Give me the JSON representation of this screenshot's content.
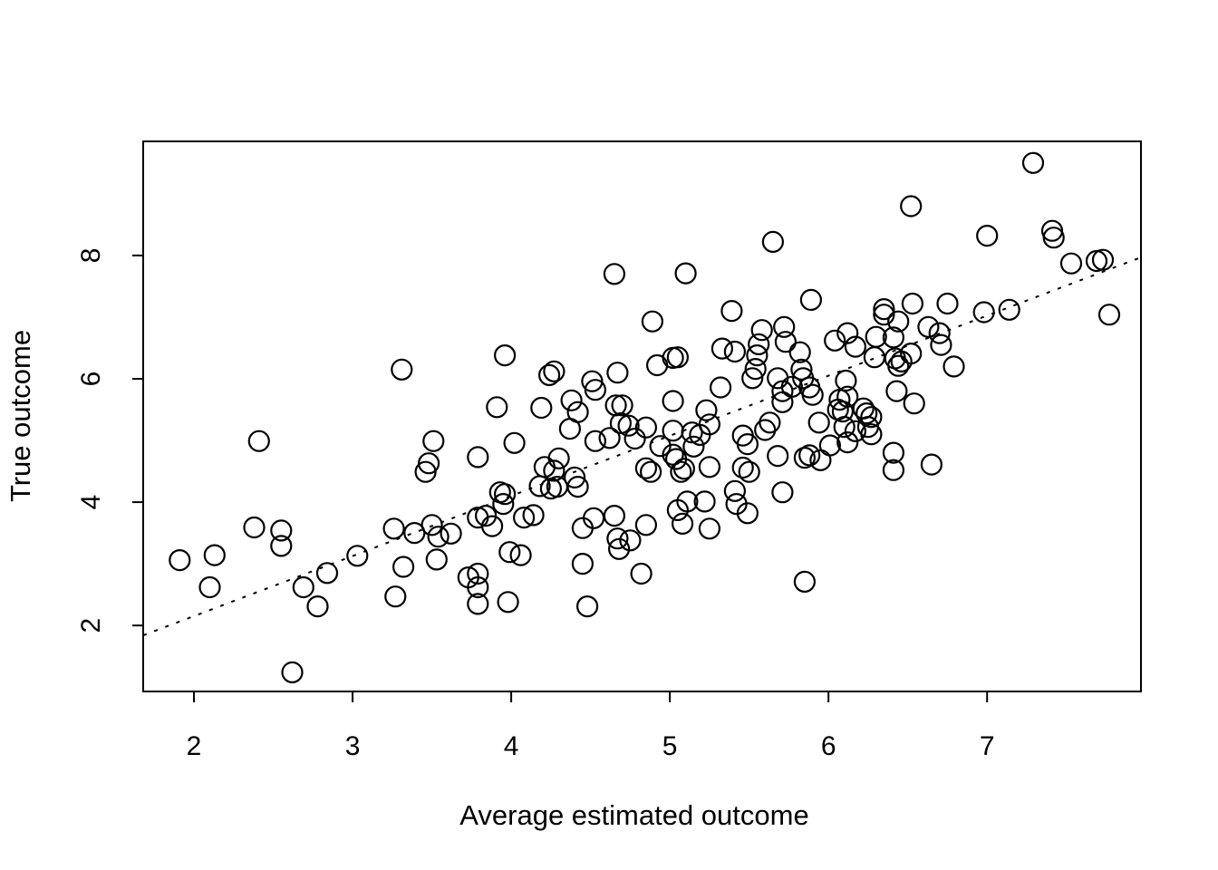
{
  "chart_data": {
    "type": "scatter",
    "title": "",
    "xlabel": "Average estimated outcome",
    "ylabel": "True outcome",
    "x_ticks": [
      2,
      3,
      4,
      5,
      6,
      7
    ],
    "y_ticks": [
      2,
      4,
      6,
      8
    ],
    "xlim": [
      1.68,
      7.97
    ],
    "ylim": [
      0.93,
      9.85
    ],
    "grid": false,
    "legend_position": "none",
    "marker": "open-circle",
    "marker_color": "#000000",
    "background_color": "#ffffff",
    "reference_line": {
      "style": "dotted",
      "slope": 0.975,
      "intercept": 0.2,
      "x1": 1.68,
      "y1": 1.84,
      "x2": 7.97,
      "y2": 7.97
    },
    "points": [
      [
        1.91,
        3.06
      ],
      [
        2.1,
        2.62
      ],
      [
        2.13,
        3.14
      ],
      [
        2.38,
        3.59
      ],
      [
        2.41,
        4.99
      ],
      [
        2.55,
        3.54
      ],
      [
        2.55,
        3.29
      ],
      [
        2.62,
        1.24
      ],
      [
        2.69,
        2.62
      ],
      [
        2.78,
        2.31
      ],
      [
        2.84,
        2.85
      ],
      [
        3.03,
        3.13
      ],
      [
        3.26,
        3.57
      ],
      [
        3.27,
        2.47
      ],
      [
        3.31,
        6.15
      ],
      [
        3.32,
        2.95
      ],
      [
        3.39,
        3.5
      ],
      [
        3.46,
        4.49
      ],
      [
        3.48,
        4.63
      ],
      [
        3.5,
        3.63
      ],
      [
        3.51,
        4.99
      ],
      [
        3.53,
        3.07
      ],
      [
        3.54,
        3.44
      ],
      [
        3.62,
        3.49
      ],
      [
        3.73,
        2.78
      ],
      [
        3.79,
        2.84
      ],
      [
        3.79,
        2.62
      ],
      [
        3.79,
        2.35
      ],
      [
        3.79,
        3.75
      ],
      [
        3.79,
        4.73
      ],
      [
        3.84,
        3.78
      ],
      [
        3.88,
        3.61
      ],
      [
        3.98,
        2.38
      ],
      [
        3.99,
        3.19
      ],
      [
        4.06,
        3.14
      ],
      [
        3.91,
        5.54
      ],
      [
        3.93,
        4.16
      ],
      [
        3.95,
        3.97
      ],
      [
        3.96,
        4.13
      ],
      [
        4.02,
        4.96
      ],
      [
        4.08,
        3.75
      ],
      [
        4.14,
        3.79
      ],
      [
        4.18,
        4.26
      ],
      [
        4.19,
        5.53
      ],
      [
        4.21,
        4.57
      ],
      [
        4.25,
        4.22
      ],
      [
        4.27,
        4.51
      ],
      [
        4.29,
        4.25
      ],
      [
        4.3,
        4.71
      ],
      [
        4.37,
        5.19
      ],
      [
        4.38,
        5.65
      ],
      [
        4.4,
        4.4
      ],
      [
        4.42,
        4.25
      ],
      [
        4.42,
        5.46
      ],
      [
        3.96,
        6.38
      ],
      [
        4.24,
        6.06
      ],
      [
        4.27,
        6.12
      ],
      [
        4.51,
        5.96
      ],
      [
        4.53,
        5.82
      ],
      [
        4.65,
        7.7
      ],
      [
        4.67,
        6.1
      ],
      [
        4.89,
        6.93
      ],
      [
        4.92,
        6.22
      ],
      [
        5.02,
        6.34
      ],
      [
        5.05,
        6.35
      ],
      [
        5.1,
        7.71
      ],
      [
        5.32,
        5.86
      ],
      [
        5.33,
        6.49
      ],
      [
        5.39,
        7.1
      ],
      [
        5.41,
        6.44
      ],
      [
        5.52,
        6.01
      ],
      [
        5.54,
        6.16
      ],
      [
        5.55,
        6.38
      ],
      [
        5.56,
        6.56
      ],
      [
        5.58,
        6.79
      ],
      [
        5.65,
        8.22
      ],
      [
        5.68,
        6.01
      ],
      [
        5.72,
        6.84
      ],
      [
        5.73,
        6.6
      ],
      [
        5.82,
        6.43
      ],
      [
        5.83,
        6.15
      ],
      [
        5.84,
        6.01
      ],
      [
        5.89,
        7.28
      ],
      [
        4.45,
        3.0
      ],
      [
        4.45,
        3.58
      ],
      [
        4.48,
        2.31
      ],
      [
        4.52,
        3.74
      ],
      [
        4.53,
        4.99
      ],
      [
        4.62,
        5.04
      ],
      [
        4.65,
        3.78
      ],
      [
        4.66,
        5.57
      ],
      [
        4.67,
        3.41
      ],
      [
        4.68,
        3.24
      ],
      [
        4.7,
        5.57
      ],
      [
        4.69,
        5.28
      ],
      [
        4.74,
        5.24
      ],
      [
        4.75,
        3.38
      ],
      [
        4.78,
        5.03
      ],
      [
        4.82,
        2.84
      ],
      [
        4.85,
        4.55
      ],
      [
        4.85,
        5.21
      ],
      [
        4.85,
        3.63
      ],
      [
        4.88,
        4.49
      ],
      [
        4.94,
        4.91
      ],
      [
        5.02,
        4.77
      ],
      [
        5.02,
        5.16
      ],
      [
        5.02,
        5.64
      ],
      [
        5.04,
        4.7
      ],
      [
        5.05,
        3.87
      ],
      [
        5.07,
        4.49
      ],
      [
        5.08,
        3.65
      ],
      [
        5.09,
        4.54
      ],
      [
        5.11,
        4.01
      ],
      [
        5.14,
        5.13
      ],
      [
        5.15,
        4.9
      ],
      [
        5.19,
        5.09
      ],
      [
        5.22,
        4.01
      ],
      [
        5.23,
        5.49
      ],
      [
        5.25,
        4.57
      ],
      [
        5.25,
        5.26
      ],
      [
        5.25,
        3.57
      ],
      [
        5.41,
        4.18
      ],
      [
        5.42,
        3.97
      ],
      [
        5.46,
        4.56
      ],
      [
        5.46,
        5.08
      ],
      [
        5.49,
        3.82
      ],
      [
        5.49,
        4.94
      ],
      [
        5.5,
        4.49
      ],
      [
        5.6,
        5.17
      ],
      [
        5.63,
        5.29
      ],
      [
        5.68,
        4.75
      ],
      [
        5.71,
        4.16
      ],
      [
        5.85,
        4.72
      ],
      [
        5.85,
        2.71
      ],
      [
        5.71,
        5.8
      ],
      [
        5.77,
        5.87
      ],
      [
        5.88,
        5.86
      ],
      [
        5.9,
        5.74
      ],
      [
        5.71,
        5.62
      ],
      [
        5.88,
        4.76
      ],
      [
        5.94,
        5.29
      ],
      [
        5.95,
        4.68
      ],
      [
        6.01,
        4.92
      ],
      [
        6.04,
        6.62
      ],
      [
        6.06,
        5.5
      ],
      [
        6.07,
        5.66
      ],
      [
        6.09,
        5.47
      ],
      [
        6.1,
        5.22
      ],
      [
        6.11,
        5.97
      ],
      [
        6.12,
        5.71
      ],
      [
        6.12,
        6.74
      ],
      [
        6.12,
        4.97
      ],
      [
        6.17,
        6.52
      ],
      [
        6.17,
        5.15
      ],
      [
        6.22,
        5.52
      ],
      [
        6.24,
        5.44
      ],
      [
        6.25,
        5.22
      ],
      [
        6.27,
        5.38
      ],
      [
        6.27,
        5.1
      ],
      [
        6.29,
        6.35
      ],
      [
        6.3,
        6.68
      ],
      [
        6.35,
        7.13
      ],
      [
        6.35,
        7.04
      ],
      [
        6.41,
        6.67
      ],
      [
        6.41,
        4.8
      ],
      [
        6.41,
        4.52
      ],
      [
        6.42,
        6.33
      ],
      [
        6.43,
        5.8
      ],
      [
        6.44,
        6.93
      ],
      [
        6.44,
        6.21
      ],
      [
        6.46,
        6.28
      ],
      [
        6.52,
        6.41
      ],
      [
        6.53,
        7.22
      ],
      [
        6.54,
        5.6
      ],
      [
        6.63,
        6.84
      ],
      [
        6.65,
        4.61
      ],
      [
        6.7,
        6.74
      ],
      [
        6.71,
        6.55
      ],
      [
        6.75,
        7.22
      ],
      [
        6.79,
        6.2
      ],
      [
        6.98,
        7.08
      ],
      [
        7.14,
        7.12
      ],
      [
        6.52,
        8.8
      ],
      [
        7.0,
        8.32
      ],
      [
        7.29,
        9.5
      ],
      [
        7.41,
        8.4
      ],
      [
        7.42,
        8.29
      ],
      [
        7.53,
        7.87
      ],
      [
        7.69,
        7.91
      ],
      [
        7.73,
        7.93
      ],
      [
        7.77,
        7.04
      ]
    ]
  },
  "colors": {
    "foreground": "#000000",
    "background": "#ffffff"
  }
}
